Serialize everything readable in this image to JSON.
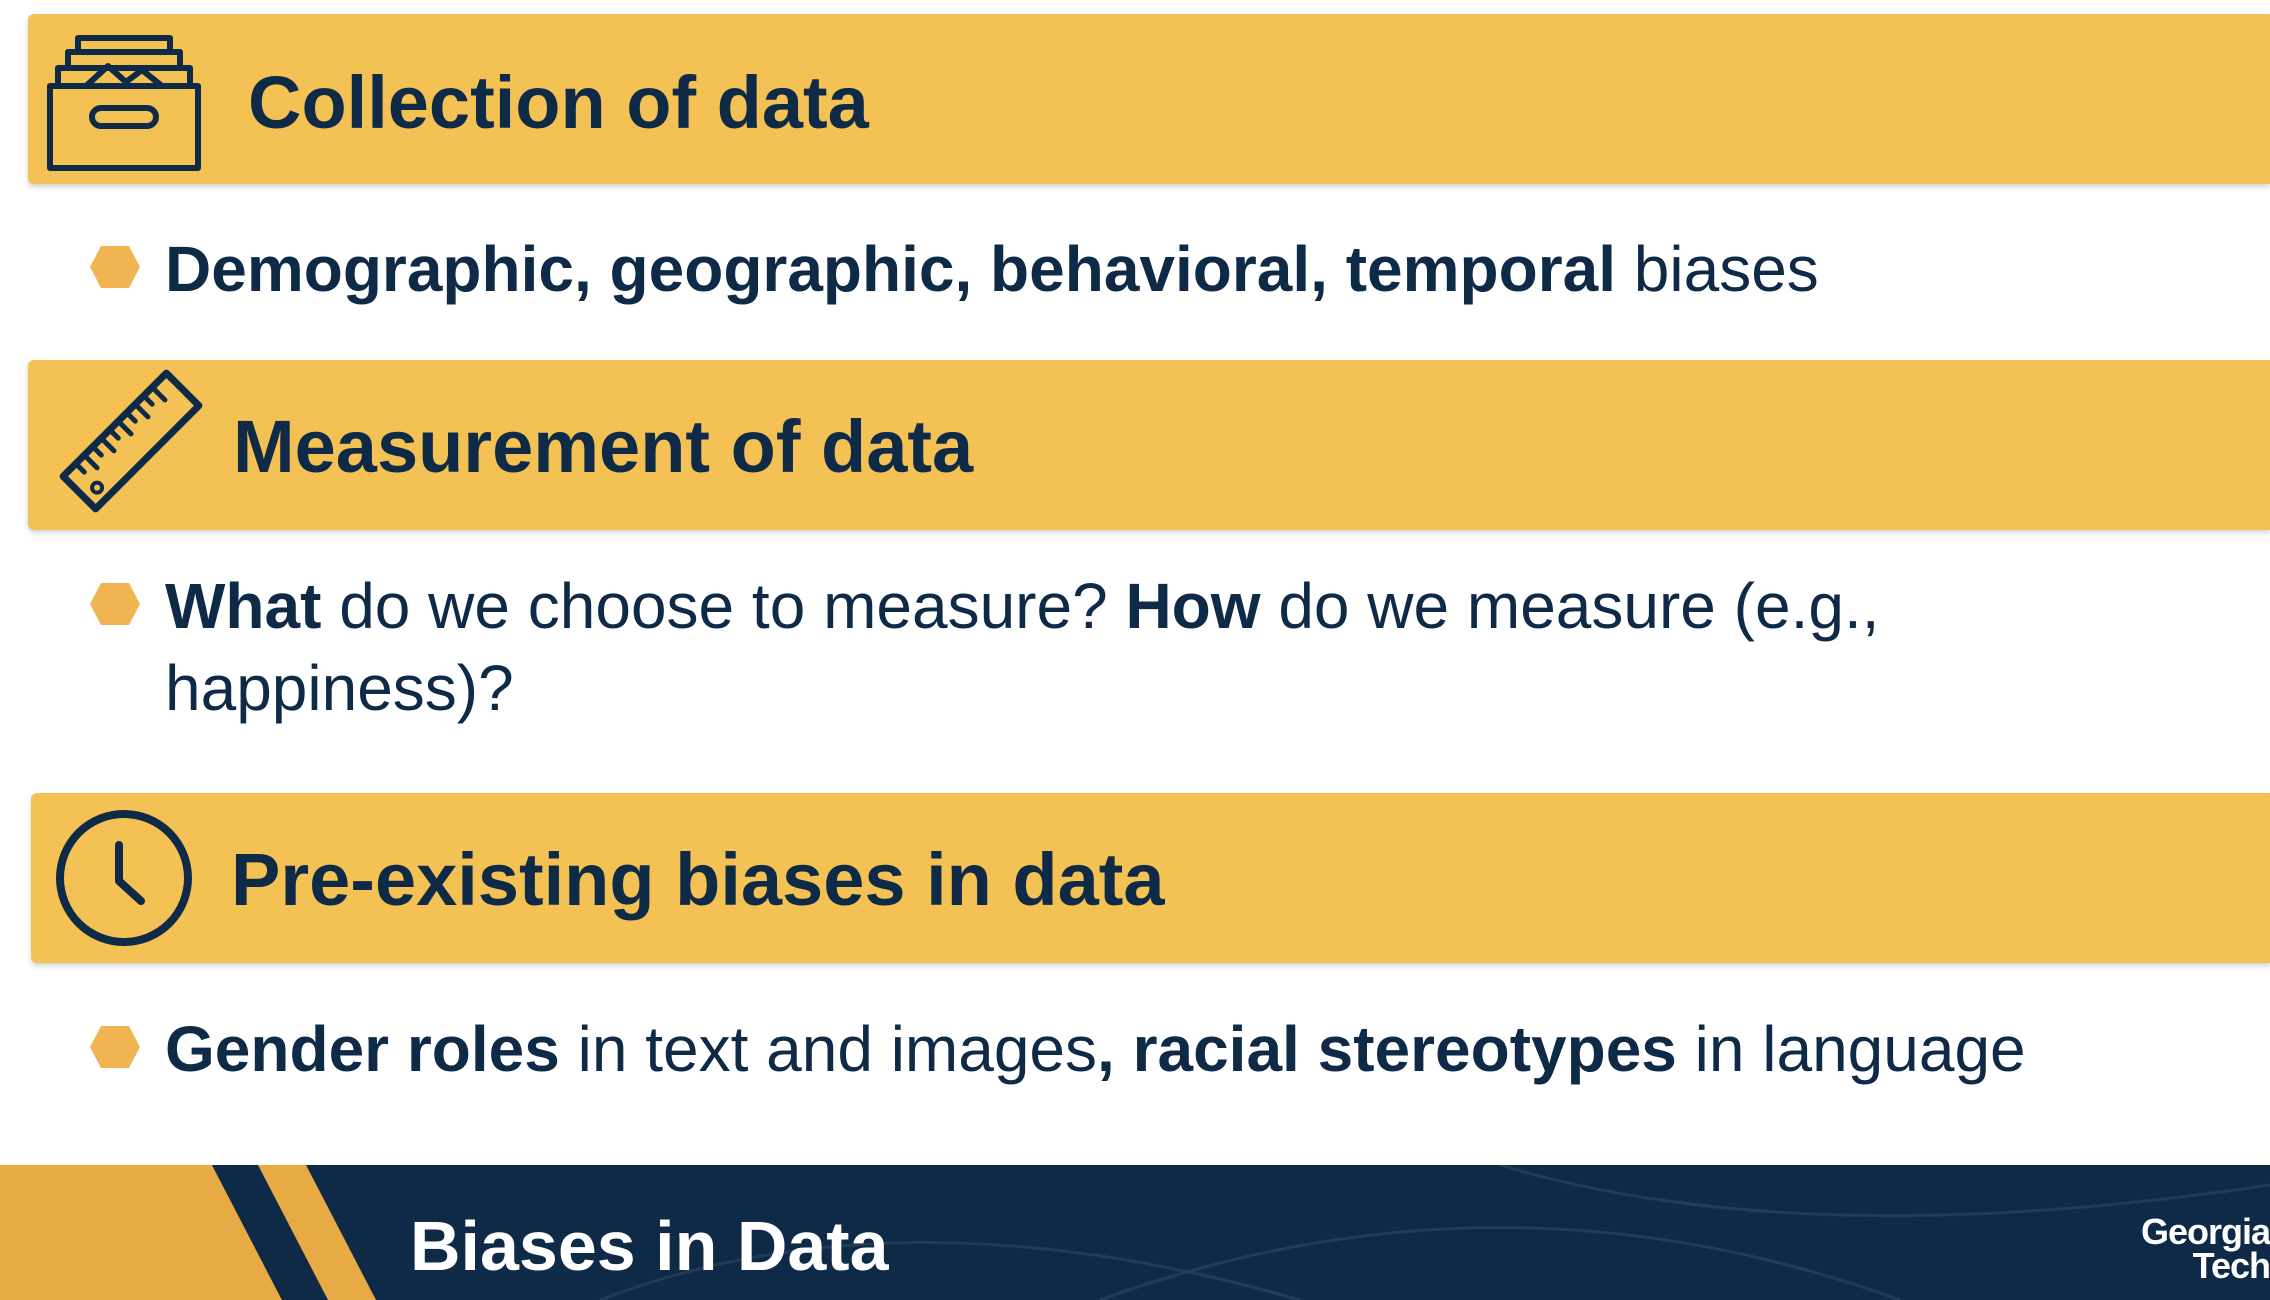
{
  "sections": [
    {
      "icon": "archive-box-icon",
      "title": "Collection of data",
      "bullet": {
        "b1": "Demographic, geographic, behavioral, temporal",
        "t1": " biases"
      }
    },
    {
      "icon": "ruler-icon",
      "title": "Measurement of data",
      "bullet": {
        "b1": "What",
        "t1": " do we choose to measure? ",
        "b2": "How",
        "t2": " do we measure (e.g., happiness)?"
      }
    },
    {
      "icon": "clock-icon",
      "title": "Pre-existing biases in data",
      "bullet": {
        "b1": "Gender roles",
        "t1": " in text and images",
        "b2": ", racial stereotypes",
        "t2": " in language"
      }
    }
  ],
  "footer": {
    "title": "Biases in Data",
    "logo_line1": "Georgia",
    "logo_line2": "Tech"
  },
  "colors": {
    "gold": "#f4c254",
    "navy": "#0f2a47",
    "footer_gold": "#e8aa45",
    "bullet": "#f0b552"
  }
}
